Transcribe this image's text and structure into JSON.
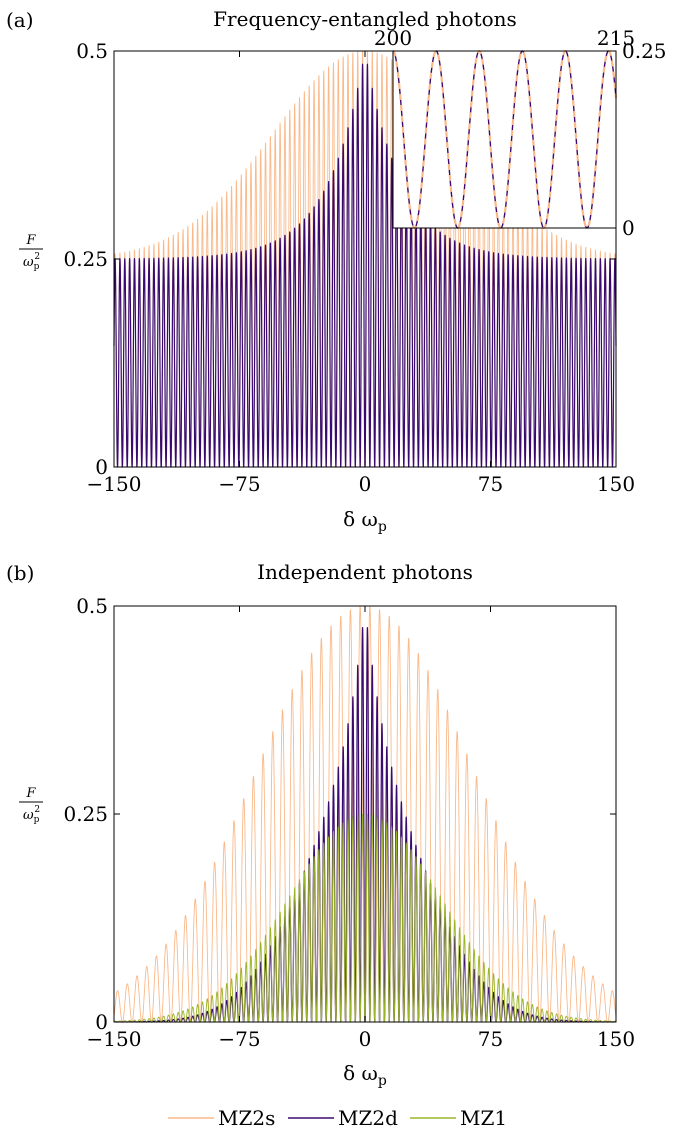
{
  "chart_data": [
    {
      "panel_label": "(a)",
      "title": "Frequency-entangled photons",
      "type": "line",
      "xlabel": "δ ω",
      "xlabel_sub": "p",
      "ylabel_num": "F",
      "ylabel_den": "ω",
      "ylabel_den_sub": "p",
      "ylabel_den_sup": "2",
      "xlim": [
        -150,
        150
      ],
      "ylim": [
        0,
        0.5
      ],
      "xticks": [
        "−150",
        "−75",
        "0",
        "75",
        "150"
      ],
      "xtick_values": [
        -150,
        -75,
        0,
        75,
        150
      ],
      "yticks": [
        "0",
        "0.25",
        "0.5"
      ],
      "ytick_values": [
        0,
        0.25,
        0.5
      ],
      "series": [
        {
          "name": "MZ2s",
          "color": "#f9b98a",
          "fringe_period": 2.9,
          "envelope": "entangled-broad",
          "x_range": [
            -150,
            150
          ]
        },
        {
          "name": "MZ2d",
          "color": "#3b0a6e",
          "fringe_period": 2.9,
          "envelope": "entangled-peaked",
          "x_range": [
            -150,
            150
          ]
        }
      ],
      "inset": {
        "xlim": [
          200,
          215
        ],
        "ylim": [
          0,
          0.25
        ],
        "xticks": [
          "200",
          "215"
        ],
        "xtick_values": [
          200,
          215
        ],
        "yticks": [
          "0",
          "0.25"
        ],
        "ytick_values": [
          0,
          0.25
        ],
        "period": 2.9,
        "amplitude": 0.25,
        "series": [
          {
            "name": "MZ2d",
            "color": "#3b0a6e",
            "style": "solid"
          },
          {
            "name": "MZ2s",
            "color": "#f9b98a",
            "style": "dashed"
          }
        ]
      }
    },
    {
      "panel_label": "(b)",
      "title": "Independent photons",
      "type": "line",
      "xlabel": "δ ω",
      "xlabel_sub": "p",
      "ylabel_num": "F",
      "ylabel_den": "ω",
      "ylabel_den_sub": "p",
      "ylabel_den_sup": "2",
      "xlim": [
        -150,
        150
      ],
      "ylim": [
        0,
        0.5
      ],
      "xticks": [
        "−150",
        "−75",
        "0",
        "75",
        "150"
      ],
      "xtick_values": [
        -150,
        -75,
        0,
        75,
        150
      ],
      "yticks": [
        "0",
        "0.25",
        "0.5"
      ],
      "ytick_values": [
        0,
        0.25,
        0.5
      ],
      "series": [
        {
          "name": "MZ2s",
          "color": "#f9b98a",
          "fringe_period": 5.8,
          "envelope": "gaussian",
          "peak": 0.5,
          "sigma": 65
        },
        {
          "name": "MZ2d",
          "color": "#3b0a6e",
          "fringe_period": 2.9,
          "envelope": "gaussian-peaked",
          "peak": 0.5,
          "sigma": 38
        },
        {
          "name": "MZ1",
          "color": "#9ab52a",
          "fringe_period": 2.9,
          "envelope": "gaussian",
          "peak": 0.25,
          "sigma": 45
        }
      ]
    }
  ],
  "legend": {
    "placement": "bottom",
    "items": [
      {
        "name": "MZ2s",
        "color": "#f9b98a"
      },
      {
        "name": "MZ2d",
        "color": "#3b0a6e"
      },
      {
        "name": "MZ1",
        "color": "#9ab52a"
      }
    ]
  }
}
